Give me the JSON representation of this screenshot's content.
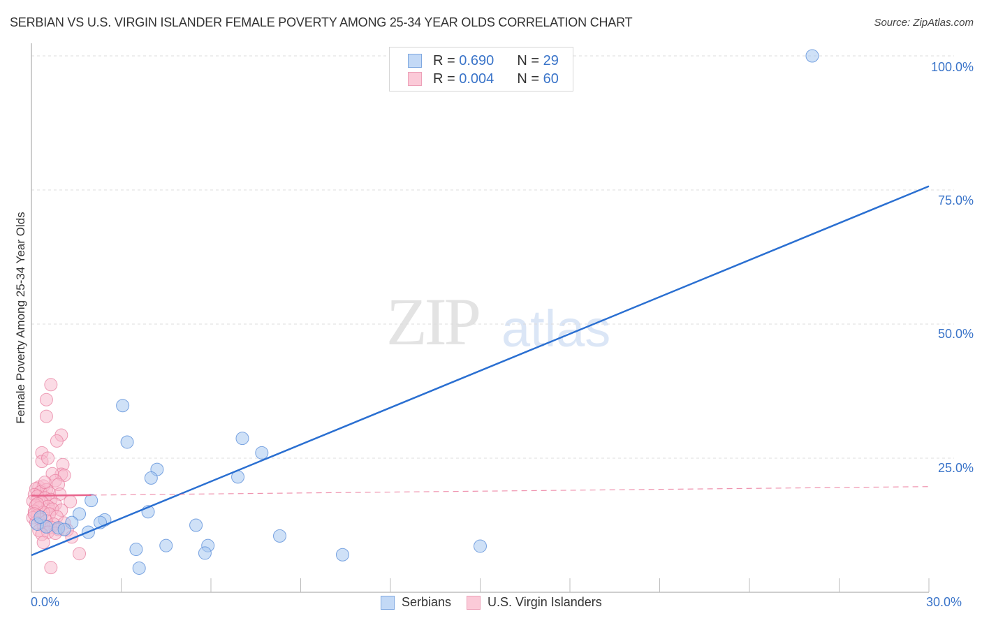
{
  "header": {
    "title": "SERBIAN VS U.S. VIRGIN ISLANDER FEMALE POVERTY AMONG 25-34 YEAR OLDS CORRELATION CHART",
    "source": "Source: ZipAtlas.com"
  },
  "watermark": {
    "zip": "ZIP",
    "atlas": "atlas"
  },
  "legend_top": {
    "rows": [
      {
        "r_label": "R =",
        "r_value": "0.690",
        "n_label": "N =",
        "n_value": "29",
        "color": "#a8c8f0"
      },
      {
        "r_label": "R =",
        "r_value": "0.004",
        "n_label": "N =",
        "n_value": "60",
        "color": "#f7b8cc"
      }
    ]
  },
  "legend_bottom": {
    "items": [
      {
        "label": "Serbians",
        "color": "#a8c8f0"
      },
      {
        "label": "U.S. Virgin Islanders",
        "color": "#f7b8cc"
      }
    ]
  },
  "axes": {
    "ylabel": "Female Poverty Among 25-34 Year Olds",
    "x_ticks": [
      "0.0%",
      "30.0%"
    ],
    "y_ticks": [
      "100.0%",
      "75.0%",
      "50.0%",
      "25.0%"
    ]
  },
  "colors": {
    "serbians_fill": "#a8c8f0",
    "serbians_stroke": "#5b8fd9",
    "serbians_line": "#2a6fd1",
    "virgin_fill": "#f7b8cc",
    "virgin_stroke": "#e7799b",
    "virgin_line": "#e8648c",
    "tick_text": "#3a74c9"
  },
  "chart_data": {
    "type": "scatter",
    "title": "SERBIAN VS U.S. VIRGIN ISLANDER FEMALE POVERTY AMONG 25-34 YEAR OLDS CORRELATION CHART",
    "xlabel": "",
    "ylabel": "Female Poverty Among 25-34 Year Olds",
    "xlim": [
      0,
      30
    ],
    "ylim": [
      0,
      100
    ],
    "x_tick_labels": [
      "0.0%",
      "30.0%"
    ],
    "y_tick_labels": [
      "25.0%",
      "50.0%",
      "75.0%",
      "100.0%"
    ],
    "grid": true,
    "legend_position": "top-center and bottom",
    "series": [
      {
        "name": "Serbians",
        "R": 0.69,
        "N": 29,
        "trend": {
          "x": [
            0,
            30
          ],
          "y": [
            6.9,
            75.7
          ]
        },
        "points": [
          [
            26.1,
            100.0
          ],
          [
            3.05,
            34.8
          ],
          [
            3.2,
            28.0
          ],
          [
            7.05,
            28.7
          ],
          [
            7.7,
            26.0
          ],
          [
            4.2,
            22.9
          ],
          [
            4.0,
            21.3
          ],
          [
            6.9,
            21.5
          ],
          [
            2.0,
            17.1
          ],
          [
            3.9,
            15.0
          ],
          [
            1.6,
            14.6
          ],
          [
            2.45,
            13.5
          ],
          [
            2.3,
            13.0
          ],
          [
            1.35,
            13.0
          ],
          [
            0.2,
            12.7
          ],
          [
            0.5,
            12.2
          ],
          [
            0.9,
            12.0
          ],
          [
            1.1,
            11.7
          ],
          [
            1.9,
            11.2
          ],
          [
            5.5,
            12.5
          ],
          [
            8.3,
            10.5
          ],
          [
            4.5,
            8.7
          ],
          [
            5.9,
            8.7
          ],
          [
            15.0,
            8.6
          ],
          [
            3.5,
            8.0
          ],
          [
            5.8,
            7.3
          ],
          [
            10.4,
            7.0
          ],
          [
            3.6,
            4.5
          ],
          [
            0.3,
            14.0
          ]
        ]
      },
      {
        "name": "U.S. Virgin Islanders",
        "R": 0.004,
        "N": 60,
        "trend": {
          "x": [
            0,
            30
          ],
          "y": [
            18.0,
            19.7
          ]
        },
        "points": [
          [
            0.65,
            38.7
          ],
          [
            0.5,
            35.9
          ],
          [
            0.5,
            32.8
          ],
          [
            1.0,
            29.3
          ],
          [
            0.85,
            28.2
          ],
          [
            0.35,
            26.0
          ],
          [
            0.35,
            24.4
          ],
          [
            0.55,
            25.0
          ],
          [
            1.05,
            23.8
          ],
          [
            1.0,
            22.0
          ],
          [
            0.7,
            22.1
          ],
          [
            1.1,
            21.8
          ],
          [
            0.8,
            20.8
          ],
          [
            0.9,
            20.1
          ],
          [
            0.25,
            19.6
          ],
          [
            0.4,
            19.8
          ],
          [
            0.15,
            19.3
          ],
          [
            0.5,
            19.1
          ],
          [
            0.3,
            18.7
          ],
          [
            0.6,
            18.5
          ],
          [
            0.1,
            18.2
          ],
          [
            0.95,
            18.3
          ],
          [
            0.2,
            17.9
          ],
          [
            0.45,
            17.6
          ],
          [
            0.65,
            17.3
          ],
          [
            0.05,
            17.0
          ],
          [
            0.35,
            16.8
          ],
          [
            1.3,
            16.9
          ],
          [
            0.8,
            16.4
          ],
          [
            0.15,
            16.2
          ],
          [
            0.55,
            16.0
          ],
          [
            0.25,
            15.7
          ],
          [
            0.7,
            15.5
          ],
          [
            1.0,
            15.3
          ],
          [
            0.1,
            15.1
          ],
          [
            0.4,
            14.9
          ],
          [
            0.6,
            14.6
          ],
          [
            0.2,
            14.3
          ],
          [
            0.85,
            14.1
          ],
          [
            0.05,
            13.9
          ],
          [
            0.3,
            13.6
          ],
          [
            0.5,
            13.3
          ],
          [
            0.15,
            13.0
          ],
          [
            0.75,
            12.7
          ],
          [
            1.1,
            12.9
          ],
          [
            0.4,
            12.4
          ],
          [
            0.65,
            12.1
          ],
          [
            0.9,
            11.7
          ],
          [
            0.25,
            11.5
          ],
          [
            0.55,
            11.2
          ],
          [
            0.8,
            11.0
          ],
          [
            1.2,
            11.6
          ],
          [
            0.35,
            10.8
          ],
          [
            1.35,
            10.3
          ],
          [
            0.4,
            9.3
          ],
          [
            1.6,
            7.2
          ],
          [
            0.65,
            4.6
          ],
          [
            0.2,
            16.5
          ],
          [
            0.45,
            20.5
          ],
          [
            0.1,
            14.6
          ]
        ]
      }
    ]
  }
}
